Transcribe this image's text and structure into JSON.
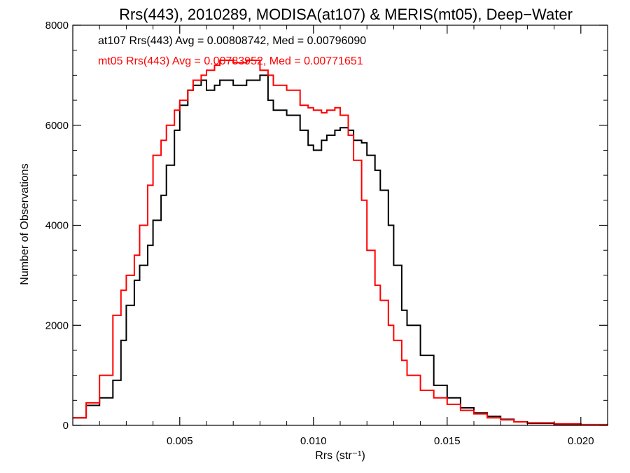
{
  "chart_data": {
    "type": "line",
    "title": "Rrs(443), 2010289, MODISA(at107) & MERIS(mt05), Deep−Water",
    "xlabel": "Rrs (str⁻¹)",
    "ylabel": "Number of Observations",
    "xlim": [
      0.001,
      0.021
    ],
    "ylim": [
      0,
      8000
    ],
    "x_ticks": [
      0.005,
      0.01,
      0.015,
      0.02
    ],
    "x_tick_labels": [
      "0.005",
      "0.010",
      "0.015",
      "0.020"
    ],
    "y_ticks": [
      0,
      2000,
      4000,
      6000,
      8000
    ],
    "y_tick_labels": [
      "0",
      "2000",
      "4000",
      "6000",
      "8000"
    ],
    "grid": false,
    "step": true,
    "annotations": [
      {
        "text": "at107 Rrs(443) Avg = 0.00808742, Med = 0.00796090",
        "color": "#000000"
      },
      {
        "text": "mt05 Rrs(443) Avg = 0.00783952, Med = 0.00771651",
        "color": "#ff0000"
      }
    ],
    "series": [
      {
        "color": "#000000",
        "x": [
          0.001,
          0.0015,
          0.002,
          0.0025,
          0.0028,
          0.003,
          0.0033,
          0.0035,
          0.0038,
          0.004,
          0.0043,
          0.0045,
          0.0048,
          0.005,
          0.0053,
          0.0055,
          0.0058,
          0.006,
          0.0063,
          0.0065,
          0.007,
          0.0075,
          0.008,
          0.0083,
          0.0085,
          0.009,
          0.0095,
          0.0098,
          0.01,
          0.0103,
          0.0105,
          0.0108,
          0.011,
          0.0113,
          0.0115,
          0.0118,
          0.012,
          0.0123,
          0.0125,
          0.0128,
          0.013,
          0.0133,
          0.0135,
          0.014,
          0.0145,
          0.015,
          0.0155,
          0.016,
          0.0165,
          0.017,
          0.0175,
          0.018,
          0.019,
          0.02,
          0.021
        ],
        "y": [
          150,
          400,
          550,
          900,
          1700,
          2400,
          2900,
          3200,
          3600,
          4100,
          4600,
          5200,
          5900,
          6400,
          6700,
          6800,
          6900,
          6700,
          6800,
          6900,
          6800,
          6900,
          7000,
          6500,
          6300,
          6200,
          5900,
          5600,
          5500,
          5700,
          5800,
          5900,
          5950,
          5900,
          5700,
          5650,
          5400,
          5100,
          4700,
          4000,
          3200,
          2300,
          2000,
          1400,
          800,
          550,
          350,
          250,
          180,
          120,
          70,
          40,
          20,
          10,
          5
        ]
      },
      {
        "color": "#ff0000",
        "x": [
          0.001,
          0.0015,
          0.002,
          0.0025,
          0.0028,
          0.003,
          0.0033,
          0.0035,
          0.0038,
          0.004,
          0.0043,
          0.0045,
          0.0048,
          0.005,
          0.0053,
          0.0055,
          0.0058,
          0.006,
          0.0063,
          0.0065,
          0.007,
          0.0075,
          0.008,
          0.0083,
          0.0085,
          0.009,
          0.0095,
          0.0098,
          0.01,
          0.0103,
          0.0105,
          0.0108,
          0.011,
          0.0113,
          0.0115,
          0.0118,
          0.012,
          0.0123,
          0.0125,
          0.0128,
          0.013,
          0.0133,
          0.0135,
          0.014,
          0.0145,
          0.015,
          0.0155,
          0.016,
          0.0165,
          0.017,
          0.0175,
          0.018,
          0.019,
          0.02,
          0.021
        ],
        "y": [
          150,
          450,
          1000,
          2200,
          2700,
          3000,
          3400,
          4000,
          4800,
          5400,
          5700,
          6000,
          6300,
          6500,
          6700,
          6900,
          7000,
          7100,
          7200,
          7300,
          7250,
          7300,
          7100,
          7000,
          6800,
          6700,
          6400,
          6350,
          6300,
          6250,
          6300,
          6350,
          6200,
          5800,
          5300,
          4500,
          3500,
          2800,
          2500,
          2000,
          1700,
          1300,
          1000,
          700,
          550,
          420,
          300,
          230,
          150,
          110,
          70,
          50,
          30,
          15,
          10
        ]
      }
    ]
  }
}
